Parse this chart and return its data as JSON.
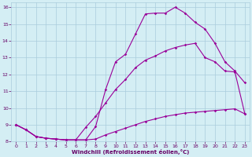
{
  "line1_x": [
    0,
    1,
    2,
    3,
    4,
    5,
    6,
    7,
    8,
    9,
    10,
    11,
    12,
    13,
    14,
    15,
    16,
    17,
    18,
    19,
    20,
    21,
    22,
    23
  ],
  "line1_y": [
    9.0,
    8.7,
    8.3,
    8.2,
    8.15,
    8.1,
    8.1,
    8.1,
    8.9,
    11.1,
    12.75,
    13.2,
    14.4,
    15.6,
    15.65,
    15.65,
    16.0,
    15.65,
    15.1,
    14.7,
    13.85,
    12.75,
    12.2,
    11.5
  ],
  "line2_x": [
    0,
    1,
    2,
    3,
    4,
    5,
    6,
    7,
    8,
    9,
    10,
    11,
    12,
    13,
    14,
    15,
    16,
    17,
    18,
    19,
    20,
    21,
    22,
    23
  ],
  "line2_y": [
    9.0,
    8.7,
    8.3,
    8.2,
    8.15,
    8.1,
    8.1,
    8.85,
    9.5,
    10.3,
    11.1,
    11.7,
    12.4,
    12.85,
    13.1,
    13.4,
    13.6,
    13.75,
    13.85,
    13.0,
    12.75,
    12.2,
    12.15,
    9.65
  ],
  "line3_x": [
    0,
    1,
    2,
    3,
    4,
    5,
    6,
    7,
    8,
    9,
    10,
    11,
    12,
    13,
    14,
    15,
    16,
    17,
    18,
    19,
    20,
    21,
    22,
    23
  ],
  "line3_y": [
    9.0,
    8.7,
    8.3,
    8.2,
    8.15,
    8.1,
    8.1,
    8.1,
    8.15,
    8.4,
    8.6,
    8.8,
    9.0,
    9.2,
    9.35,
    9.5,
    9.6,
    9.7,
    9.75,
    9.8,
    9.85,
    9.9,
    9.95,
    9.65
  ],
  "line_color": "#990099",
  "bg_color": "#d4eef4",
  "grid_color": "#aaccdd",
  "xlabel": "Windchill (Refroidissement éolien,°C)",
  "xlabel_color": "#660066",
  "tick_color": "#660066",
  "xlim": [
    -0.5,
    23.5
  ],
  "ylim": [
    8.0,
    16.3
  ],
  "xticks": [
    0,
    1,
    2,
    3,
    4,
    5,
    6,
    7,
    8,
    9,
    10,
    11,
    12,
    13,
    14,
    15,
    16,
    17,
    18,
    19,
    20,
    21,
    22,
    23
  ],
  "yticks": [
    8,
    9,
    10,
    11,
    12,
    13,
    14,
    15,
    16
  ],
  "marker": "D",
  "markersize": 1.8,
  "linewidth": 0.8
}
